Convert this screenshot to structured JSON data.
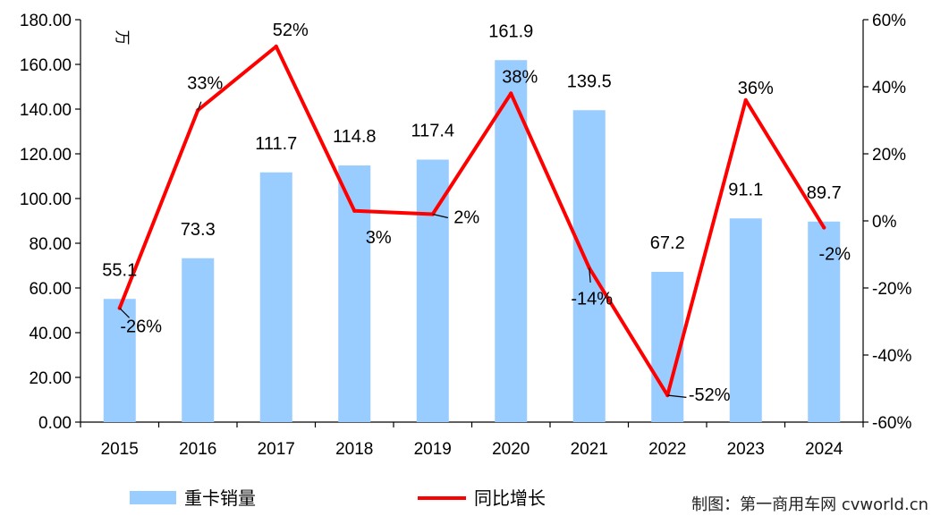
{
  "chart_data": {
    "type": "bar+line",
    "categories": [
      "2015",
      "2016",
      "2017",
      "2018",
      "2019",
      "2020",
      "2021",
      "2022",
      "2023",
      "2024"
    ],
    "series": [
      {
        "name": "重卡销量",
        "type": "bar",
        "axis": "left",
        "color": "#99CCFF",
        "values": [
          55.1,
          73.3,
          111.7,
          114.8,
          117.4,
          161.9,
          139.5,
          67.2,
          91.1,
          89.7
        ],
        "labels": [
          "55.1",
          "73.3",
          "111.7",
          "114.8",
          "117.4",
          "161.9",
          "139.5",
          "67.2",
          "91.1",
          "89.7"
        ]
      },
      {
        "name": "同比增长",
        "type": "line",
        "axis": "right",
        "color": "#FF0000",
        "values": [
          -26,
          33,
          52,
          3,
          2,
          38,
          -14,
          -52,
          36,
          -2
        ],
        "labels": [
          "-26%",
          "33%",
          "52%",
          "3%",
          "2%",
          "38%",
          "-14%",
          "-52%",
          "36%",
          "-2%"
        ]
      }
    ],
    "y_left": {
      "min": 0,
      "max": 180,
      "step": 20,
      "ticks": [
        "0.00",
        "20.00",
        "40.00",
        "60.00",
        "80.00",
        "100.00",
        "120.00",
        "140.00",
        "160.00",
        "180.00"
      ],
      "unit": "万"
    },
    "y_right": {
      "min": -60,
      "max": 60,
      "step": 20,
      "ticks": [
        "-60%",
        "-40%",
        "-20%",
        "0%",
        "20%",
        "40%",
        "60%"
      ]
    },
    "grid": false,
    "legend": "bottom"
  },
  "credit": "制图：第一商用车网 cvworld.cn"
}
